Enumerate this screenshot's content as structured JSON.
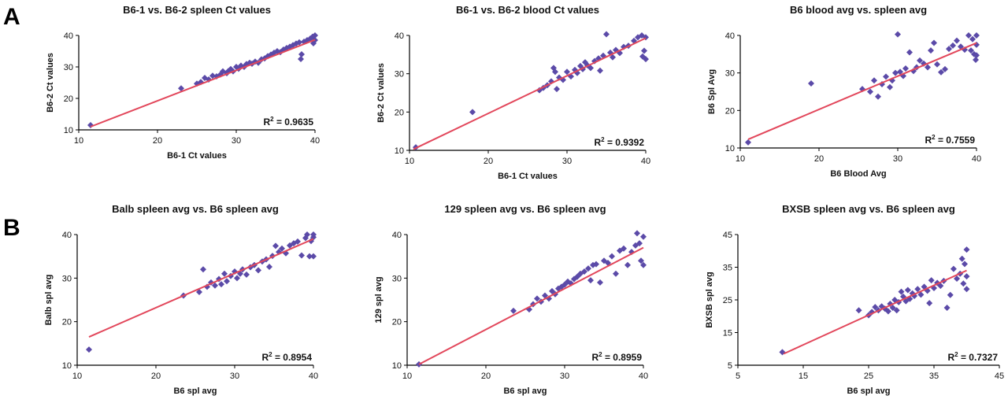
{
  "panel_labels": [
    "A",
    "B"
  ],
  "chart_data": [
    {
      "type": "scatter",
      "title": "B6-1 vs. B6-2 spleen Ct values",
      "xlabel": "B6-1 Ct values",
      "ylabel": "B6-2 Ct values",
      "xlim": [
        10,
        40
      ],
      "ylim": [
        10,
        40
      ],
      "xticks": [
        10,
        20,
        30,
        40
      ],
      "yticks": [
        10,
        20,
        30,
        40
      ],
      "r2_prefix": "R",
      "r2_sup": "2",
      "r2_value": " = 0.9635",
      "trendline": {
        "x": [
          11.5,
          40
        ],
        "y": [
          11.0,
          38.6
        ]
      },
      "marker_color": "#5b4aa8",
      "line_color": "#e2475b",
      "points": [
        [
          11.5,
          11.5
        ],
        [
          23,
          23.2
        ],
        [
          25,
          24.7
        ],
        [
          25.5,
          25.2
        ],
        [
          26,
          26.5
        ],
        [
          26.5,
          26
        ],
        [
          27,
          27.2
        ],
        [
          27.5,
          27
        ],
        [
          28,
          27.6
        ],
        [
          28.3,
          28.6
        ],
        [
          28.8,
          28
        ],
        [
          29,
          28.7
        ],
        [
          29.3,
          29.3
        ],
        [
          29.6,
          28.6
        ],
        [
          30,
          30
        ],
        [
          30.3,
          29.4
        ],
        [
          30.6,
          30.4
        ],
        [
          31,
          30
        ],
        [
          31.3,
          30.9
        ],
        [
          31.7,
          31.3
        ],
        [
          32,
          31
        ],
        [
          32.4,
          31.7
        ],
        [
          32.8,
          31.3
        ],
        [
          33.2,
          32.4
        ],
        [
          33.6,
          32.7
        ],
        [
          34,
          33.4
        ],
        [
          34.4,
          33.9
        ],
        [
          34.8,
          34.5
        ],
        [
          35.2,
          35
        ],
        [
          35.6,
          34.7
        ],
        [
          36,
          35.5
        ],
        [
          36.4,
          36
        ],
        [
          36.8,
          36.4
        ],
        [
          37.2,
          36.9
        ],
        [
          37.6,
          37.4
        ],
        [
          38,
          37.8
        ],
        [
          38.2,
          32.5
        ],
        [
          38.3,
          34
        ],
        [
          38.6,
          38
        ],
        [
          39,
          38.5
        ],
        [
          39.4,
          39
        ],
        [
          39.7,
          39.6
        ],
        [
          39.8,
          37.5
        ],
        [
          40,
          40
        ],
        [
          40,
          38.5
        ]
      ]
    },
    {
      "type": "scatter",
      "title": "B6-1 vs. B6-2 blood Ct values",
      "xlabel": "B6-1 Ct values",
      "ylabel": "B6-2 Ct values",
      "xlim": [
        10,
        40
      ],
      "ylim": [
        10,
        40
      ],
      "xticks": [
        10,
        20,
        30,
        40
      ],
      "yticks": [
        10,
        20,
        30,
        40
      ],
      "r2_prefix": "R",
      "r2_sup": "2",
      "r2_value": " = 0.9392",
      "trendline": {
        "x": [
          10.5,
          40
        ],
        "y": [
          10.3,
          39.3
        ]
      },
      "marker_color": "#5b4aa8",
      "line_color": "#e2475b",
      "points": [
        [
          10.8,
          10.8
        ],
        [
          18,
          20
        ],
        [
          26.5,
          25.7
        ],
        [
          27,
          26.3
        ],
        [
          27.5,
          27
        ],
        [
          28,
          28
        ],
        [
          28.3,
          31.5
        ],
        [
          28.5,
          30.5
        ],
        [
          28.7,
          26
        ],
        [
          29,
          29
        ],
        [
          29.5,
          28.4
        ],
        [
          30,
          30.5
        ],
        [
          30.5,
          29.3
        ],
        [
          31,
          31
        ],
        [
          31.3,
          30.2
        ],
        [
          31.7,
          32
        ],
        [
          32,
          31.2
        ],
        [
          32.3,
          33
        ],
        [
          32.6,
          32.2
        ],
        [
          33,
          31.5
        ],
        [
          33.5,
          33.3
        ],
        [
          34,
          34
        ],
        [
          34.2,
          30.8
        ],
        [
          34.6,
          34.7
        ],
        [
          35,
          40.3
        ],
        [
          35.5,
          35.5
        ],
        [
          35.8,
          34.3
        ],
        [
          36.2,
          36.2
        ],
        [
          36.7,
          35.4
        ],
        [
          37.2,
          37
        ],
        [
          37.8,
          37.3
        ],
        [
          38.5,
          38.6
        ],
        [
          39,
          39.5
        ],
        [
          39.5,
          40
        ],
        [
          39.6,
          34.5
        ],
        [
          39.8,
          36
        ],
        [
          40,
          33.8
        ],
        [
          40,
          39.5
        ]
      ]
    },
    {
      "type": "scatter",
      "title": "B6 blood avg vs. spleen avg",
      "xlabel": "B6 Blood Avg",
      "ylabel": "B6 Spl Avg",
      "xlim": [
        10,
        40
      ],
      "ylim": [
        10,
        40
      ],
      "xticks": [
        10,
        20,
        30,
        40
      ],
      "yticks": [
        10,
        20,
        30,
        40
      ],
      "r2_prefix": "R",
      "r2_sup": "2",
      "r2_value": " = 0.7559",
      "trendline": {
        "x": [
          11,
          40
        ],
        "y": [
          12.3,
          38
        ]
      },
      "marker_color": "#5b4aa8",
      "line_color": "#e2475b",
      "points": [
        [
          11,
          11.5
        ],
        [
          19,
          27.2
        ],
        [
          25.5,
          25.7
        ],
        [
          26.5,
          25
        ],
        [
          27,
          28
        ],
        [
          27.5,
          23.7
        ],
        [
          28,
          27
        ],
        [
          28.5,
          29
        ],
        [
          29,
          26.2
        ],
        [
          29.3,
          28
        ],
        [
          29.7,
          30
        ],
        [
          30,
          40.3
        ],
        [
          30.3,
          30.3
        ],
        [
          30.7,
          29.2
        ],
        [
          31,
          31.2
        ],
        [
          31.5,
          35.5
        ],
        [
          32,
          30.5
        ],
        [
          32.4,
          31.5
        ],
        [
          32.8,
          33.3
        ],
        [
          33.3,
          32.5
        ],
        [
          33.8,
          31.5
        ],
        [
          34.2,
          36
        ],
        [
          34.6,
          38
        ],
        [
          35,
          32.3
        ],
        [
          35.5,
          30.2
        ],
        [
          36,
          31
        ],
        [
          36.5,
          36.4
        ],
        [
          37,
          37.3
        ],
        [
          37.5,
          38.6
        ],
        [
          38,
          37
        ],
        [
          38.5,
          36.2
        ],
        [
          39,
          40
        ],
        [
          39.3,
          36
        ],
        [
          39.5,
          39
        ],
        [
          39.7,
          35
        ],
        [
          39.9,
          33.5
        ],
        [
          40,
          37.5
        ],
        [
          40,
          40
        ],
        [
          40,
          34.7
        ]
      ]
    },
    {
      "type": "scatter",
      "title": "Balb spleen avg vs. B6 spleen avg",
      "xlabel": "B6 spl avg",
      "ylabel": "Balb spl avg",
      "xlim": [
        10,
        40
      ],
      "ylim": [
        10,
        40
      ],
      "xticks": [
        10,
        20,
        30,
        40
      ],
      "yticks": [
        10,
        20,
        30,
        40
      ],
      "r2_prefix": "R",
      "r2_sup": "2",
      "r2_value": " = 0.8954",
      "trendline": {
        "x": [
          11.5,
          40
        ],
        "y": [
          16.5,
          39
        ]
      },
      "marker_color": "#5b4aa8",
      "line_color": "#e2475b",
      "points": [
        [
          11.5,
          13.6
        ],
        [
          23.5,
          26
        ],
        [
          25.5,
          26.8
        ],
        [
          26,
          32
        ],
        [
          26.5,
          28
        ],
        [
          27,
          29
        ],
        [
          27.5,
          28.3
        ],
        [
          28,
          29.8
        ],
        [
          28.3,
          28.6
        ],
        [
          28.7,
          31
        ],
        [
          29,
          29.3
        ],
        [
          29.5,
          30.5
        ],
        [
          30,
          31.5
        ],
        [
          30.3,
          30
        ],
        [
          30.7,
          31
        ],
        [
          31,
          32
        ],
        [
          31.5,
          30.8
        ],
        [
          32,
          32.5
        ],
        [
          32.5,
          33
        ],
        [
          33,
          31.8
        ],
        [
          33.5,
          33.8
        ],
        [
          34,
          34.3
        ],
        [
          34.4,
          32.6
        ],
        [
          34.8,
          35.1
        ],
        [
          35.2,
          37.4
        ],
        [
          35.6,
          36
        ],
        [
          36,
          36.8
        ],
        [
          36.5,
          35.7
        ],
        [
          37,
          37.5
        ],
        [
          37.5,
          38
        ],
        [
          38,
          38.4
        ],
        [
          38.5,
          35.2
        ],
        [
          39,
          39.2
        ],
        [
          39.2,
          40
        ],
        [
          39.5,
          35
        ],
        [
          39.7,
          38.5
        ],
        [
          40,
          40
        ],
        [
          40,
          35
        ],
        [
          40,
          39.4
        ]
      ]
    },
    {
      "type": "scatter",
      "title": "129 spleen avg vs. B6 spleen avg",
      "xlabel": "B6 spl avg",
      "ylabel": "129 spl avg",
      "xlim": [
        10,
        40
      ],
      "ylim": [
        10,
        40
      ],
      "xticks": [
        10,
        20,
        30,
        40
      ],
      "yticks": [
        10,
        20,
        30,
        40
      ],
      "r2_prefix": "R",
      "r2_sup": "2",
      "r2_value": " = 0.8959",
      "trendline": {
        "x": [
          11.5,
          40
        ],
        "y": [
          10.2,
          37
        ]
      },
      "marker_color": "#5b4aa8",
      "line_color": "#e2475b",
      "points": [
        [
          11.5,
          10.2
        ],
        [
          23.5,
          22.5
        ],
        [
          25.5,
          22.8
        ],
        [
          26,
          24
        ],
        [
          26.5,
          25.3
        ],
        [
          27,
          24.6
        ],
        [
          27.5,
          26
        ],
        [
          28,
          25.3
        ],
        [
          28.4,
          27
        ],
        [
          28.8,
          26.3
        ],
        [
          29.2,
          27.6
        ],
        [
          29.6,
          28
        ],
        [
          30,
          28.5
        ],
        [
          30.4,
          29.2
        ],
        [
          30.8,
          28.8
        ],
        [
          31.2,
          29.8
        ],
        [
          31.6,
          30.3
        ],
        [
          32,
          31
        ],
        [
          32.5,
          31.5
        ],
        [
          33,
          32.2
        ],
        [
          33.3,
          29.5
        ],
        [
          33.6,
          33
        ],
        [
          34,
          33.2
        ],
        [
          34.5,
          29
        ],
        [
          35,
          34
        ],
        [
          35.5,
          33.5
        ],
        [
          36,
          35
        ],
        [
          36.5,
          31
        ],
        [
          37,
          36.3
        ],
        [
          37.5,
          36.8
        ],
        [
          38,
          33
        ],
        [
          38.5,
          36
        ],
        [
          39,
          37.5
        ],
        [
          39.2,
          40.3
        ],
        [
          39.5,
          38
        ],
        [
          39.7,
          34
        ],
        [
          40,
          39.5
        ],
        [
          40,
          33
        ]
      ]
    },
    {
      "type": "scatter",
      "title": "BXSB spleen avg vs. B6 spleen avg",
      "xlabel": "B6 spl avg",
      "ylabel": "BXSB spl avg",
      "xlim": [
        5,
        45
      ],
      "ylim": [
        5,
        45
      ],
      "xticks": [
        5,
        15,
        25,
        35,
        45
      ],
      "yticks": [
        5,
        15,
        25,
        35,
        45
      ],
      "r2_prefix": "R",
      "r2_sup": "2",
      "r2_value": " = 0.7327",
      "trendline": {
        "x": [
          12,
          40
        ],
        "y": [
          8.5,
          34
        ]
      },
      "marker_color": "#5b4aa8",
      "line_color": "#e2475b",
      "points": [
        [
          11.8,
          9
        ],
        [
          23.5,
          21.8
        ],
        [
          25,
          20.3
        ],
        [
          25.5,
          21.3
        ],
        [
          26,
          22.8
        ],
        [
          26.5,
          21.8
        ],
        [
          27,
          23
        ],
        [
          27.5,
          22.3
        ],
        [
          28,
          21.5
        ],
        [
          28.3,
          23.8
        ],
        [
          28.7,
          22.6
        ],
        [
          29,
          25
        ],
        [
          29.3,
          21.8
        ],
        [
          29.6,
          24.3
        ],
        [
          30,
          27.5
        ],
        [
          30.3,
          26
        ],
        [
          30.7,
          24.6
        ],
        [
          31,
          28
        ],
        [
          31.3,
          25.3
        ],
        [
          31.7,
          27
        ],
        [
          32,
          26.2
        ],
        [
          32.5,
          28.3
        ],
        [
          33,
          26.6
        ],
        [
          33.5,
          29
        ],
        [
          34,
          27.8
        ],
        [
          34.3,
          24
        ],
        [
          34.6,
          31
        ],
        [
          35,
          28.6
        ],
        [
          35.5,
          30.2
        ],
        [
          36,
          29.3
        ],
        [
          36.5,
          30.8
        ],
        [
          37,
          22.6
        ],
        [
          37.5,
          26.5
        ],
        [
          38,
          34.5
        ],
        [
          38.5,
          31.5
        ],
        [
          39,
          33
        ],
        [
          39.3,
          37.6
        ],
        [
          39.5,
          30
        ],
        [
          39.7,
          36
        ],
        [
          40,
          40.4
        ],
        [
          40,
          28.3
        ],
        [
          40,
          32.2
        ]
      ]
    }
  ]
}
